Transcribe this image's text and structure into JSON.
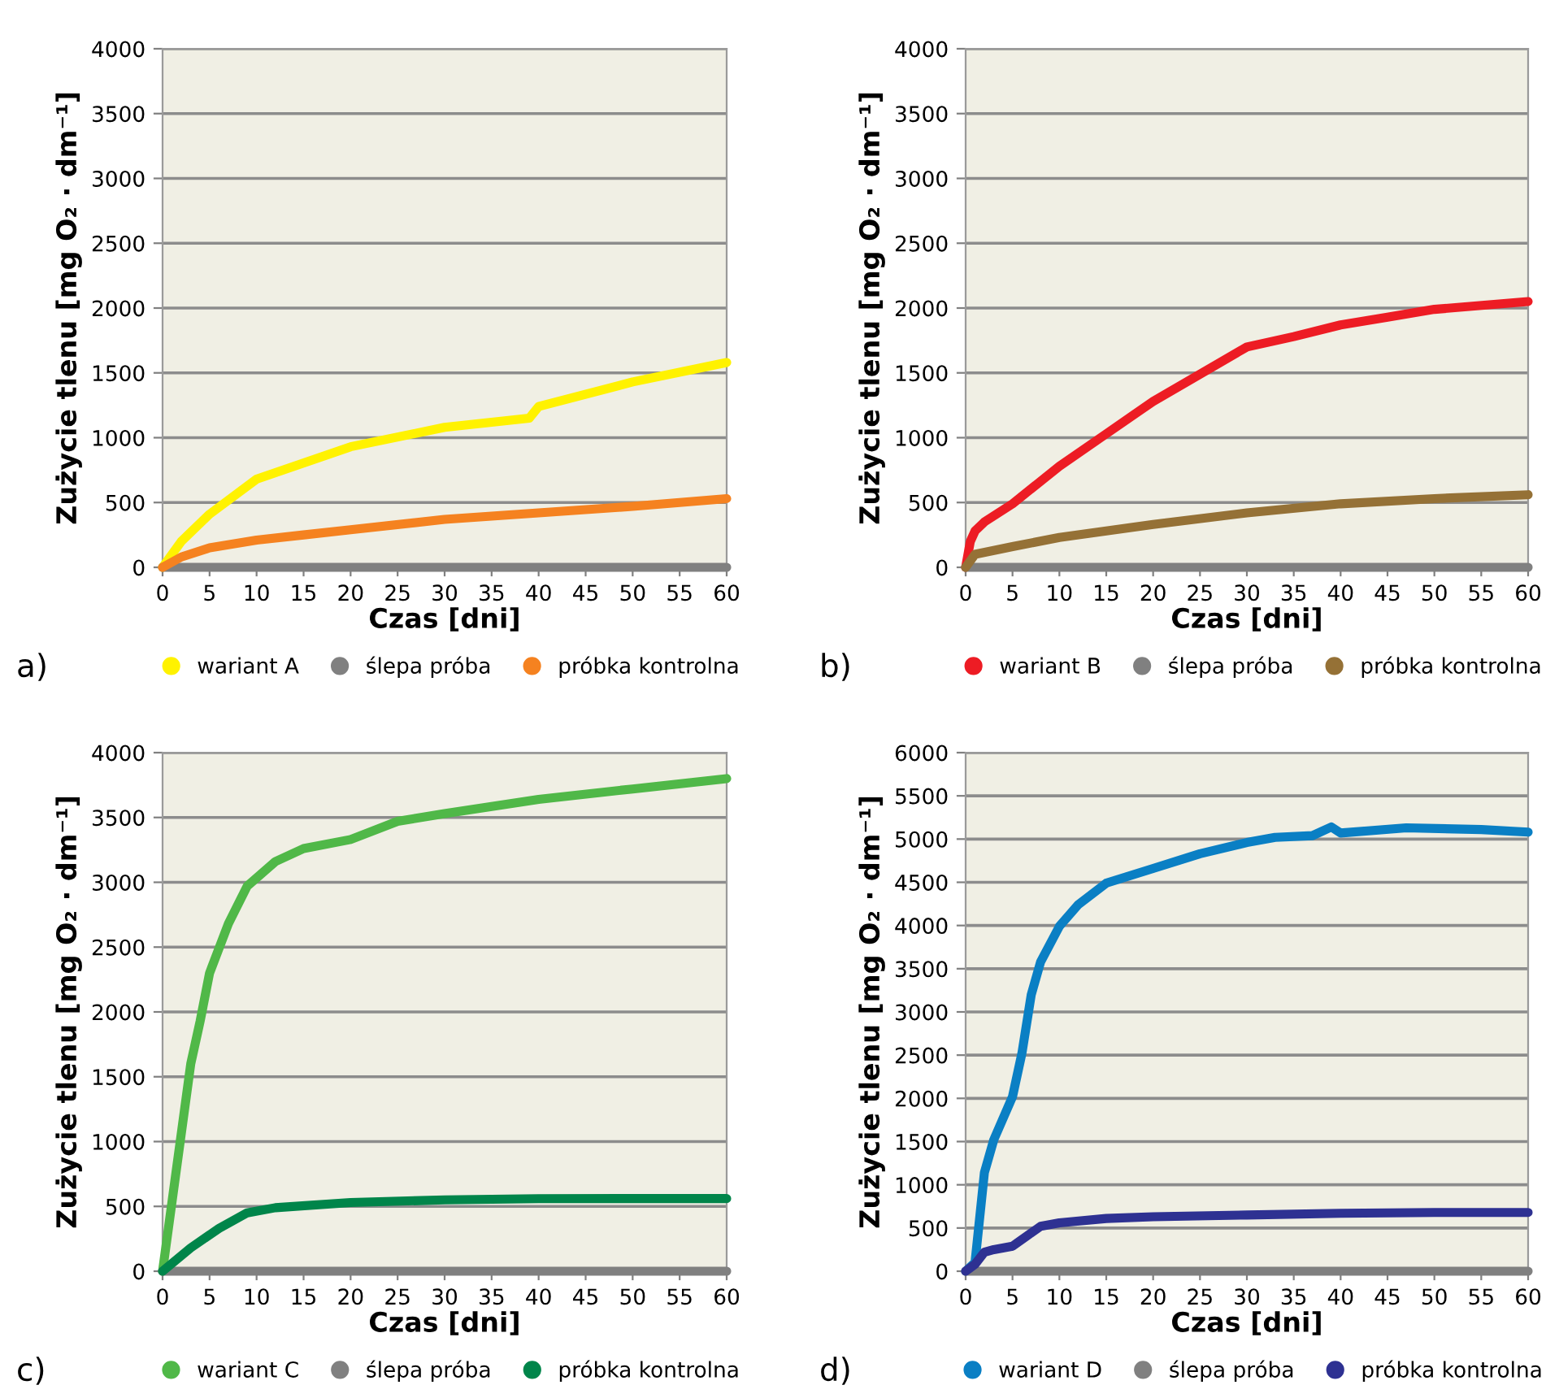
{
  "chart_data": [
    {
      "type": "line",
      "xlabel": "Czas [dni]",
      "ylabel": "Zużycie tlenu [mg O₂ · dm⁻¹]",
      "annotations": [
        "a)"
      ],
      "xlim": [
        0,
        60
      ],
      "xticks": [
        0,
        5,
        10,
        15,
        20,
        25,
        30,
        35,
        40,
        45,
        50,
        55,
        60
      ],
      "ylim": [
        0,
        4000
      ],
      "yticks": [
        0,
        500,
        1000,
        1500,
        2000,
        2500,
        3000,
        3500,
        4000
      ],
      "grid": "y",
      "legend": "bottom",
      "marker": "none",
      "line_style": "solid",
      "series": [
        {
          "name": "wariant A",
          "color": "#fff200",
          "x": [
            0,
            2,
            5,
            10,
            20,
            30,
            39,
            40,
            50,
            60
          ],
          "values": [
            0,
            200,
            410,
            680,
            930,
            1080,
            1150,
            1240,
            1430,
            1580
          ]
        },
        {
          "name": "ślepa próba",
          "color": "#808080",
          "x": [
            0,
            60
          ],
          "values": [
            0,
            0
          ]
        },
        {
          "name": "próbka kontrolna",
          "color": "#f58220",
          "x": [
            0,
            2,
            5,
            10,
            15,
            20,
            30,
            40,
            50,
            60
          ],
          "values": [
            0,
            80,
            150,
            210,
            250,
            290,
            370,
            420,
            470,
            530
          ]
        }
      ]
    },
    {
      "type": "line",
      "xlabel": "Czas [dni]",
      "ylabel": "Zużycie tlenu [mg O₂ · dm⁻¹]",
      "annotations": [
        "b)"
      ],
      "xlim": [
        0,
        60
      ],
      "xticks": [
        0,
        5,
        10,
        15,
        20,
        25,
        30,
        35,
        40,
        45,
        50,
        55,
        60
      ],
      "ylim": [
        0,
        4000
      ],
      "yticks": [
        0,
        500,
        1000,
        1500,
        2000,
        2500,
        3000,
        3500,
        4000
      ],
      "grid": "y",
      "legend": "bottom",
      "marker": "none",
      "line_style": "solid",
      "series": [
        {
          "name": "wariant B",
          "color": "#ed1c24",
          "x": [
            0,
            0.5,
            1,
            2,
            5,
            10,
            15,
            20,
            25,
            30,
            35,
            40,
            45,
            50,
            60
          ],
          "values": [
            0,
            200,
            280,
            350,
            490,
            780,
            1030,
            1280,
            1490,
            1700,
            1780,
            1870,
            1930,
            1990,
            2050
          ]
        },
        {
          "name": "ślepa próba",
          "color": "#808080",
          "x": [
            0,
            60
          ],
          "values": [
            0,
            0
          ]
        },
        {
          "name": "próbka kontrolna",
          "color": "#957136",
          "x": [
            0,
            1,
            5,
            10,
            20,
            30,
            40,
            50,
            60
          ],
          "values": [
            0,
            100,
            160,
            230,
            330,
            420,
            490,
            530,
            560
          ]
        }
      ]
    },
    {
      "type": "line",
      "xlabel": "Czas [dni]",
      "ylabel": "Zużycie tlenu [mg O₂ · dm⁻¹]",
      "annotations": [
        "c)"
      ],
      "xlim": [
        0,
        60
      ],
      "xticks": [
        0,
        5,
        10,
        15,
        20,
        25,
        30,
        35,
        40,
        45,
        50,
        55,
        60
      ],
      "ylim": [
        0,
        4000
      ],
      "yticks": [
        0,
        500,
        1000,
        1500,
        2000,
        2500,
        3000,
        3500,
        4000
      ],
      "grid": "y",
      "legend": "bottom",
      "marker": "none",
      "line_style": "solid",
      "series": [
        {
          "name": "wariant C",
          "color": "#50b848",
          "x": [
            0,
            3,
            4,
            5,
            7,
            9,
            12,
            15,
            20,
            25,
            30,
            40,
            50,
            60
          ],
          "values": [
            0,
            1600,
            1930,
            2300,
            2680,
            2970,
            3160,
            3260,
            3330,
            3470,
            3530,
            3640,
            3720,
            3800
          ]
        },
        {
          "name": "ślepa próba",
          "color": "#808080",
          "x": [
            0,
            60
          ],
          "values": [
            0,
            0
          ]
        },
        {
          "name": "próbka kontrolna",
          "color": "#00854a",
          "x": [
            0,
            3,
            6,
            9,
            12,
            20,
            30,
            40,
            50,
            60
          ],
          "values": [
            0,
            180,
            330,
            450,
            490,
            530,
            550,
            560,
            560,
            560
          ]
        }
      ]
    },
    {
      "type": "line",
      "xlabel": "Czas [dni]",
      "ylabel": "Zużycie tlenu [mg O₂ · dm⁻¹]",
      "annotations": [
        "d)"
      ],
      "xlim": [
        0,
        60
      ],
      "xticks": [
        0,
        5,
        10,
        15,
        20,
        25,
        30,
        35,
        40,
        45,
        50,
        55,
        60
      ],
      "ylim": [
        0,
        6000
      ],
      "yticks": [
        0,
        500,
        1000,
        1500,
        2000,
        2500,
        3000,
        3500,
        4000,
        4500,
        5000,
        5500,
        6000
      ],
      "grid": "y",
      "legend": "bottom",
      "marker": "none",
      "line_style": "solid",
      "series": [
        {
          "name": "wariant D",
          "color": "#0a7fc4",
          "x": [
            0,
            1,
            2,
            3,
            5,
            6,
            7,
            8,
            10,
            12,
            15,
            20,
            25,
            30,
            33,
            37,
            39,
            40,
            47,
            55,
            60
          ],
          "values": [
            0,
            100,
            1140,
            1520,
            2020,
            2520,
            3200,
            3580,
            3990,
            4240,
            4490,
            4660,
            4830,
            4960,
            5020,
            5040,
            5140,
            5070,
            5130,
            5110,
            5080
          ]
        },
        {
          "name": "ślepa próba",
          "color": "#808080",
          "x": [
            0,
            60
          ],
          "values": [
            0,
            0
          ]
        },
        {
          "name": "próbka kontrolna",
          "color": "#2e3192",
          "x": [
            0,
            1,
            2,
            3,
            5,
            8,
            10,
            15,
            20,
            30,
            40,
            50,
            60
          ],
          "values": [
            0,
            80,
            220,
            250,
            290,
            520,
            560,
            610,
            630,
            650,
            670,
            680,
            680
          ]
        }
      ]
    }
  ]
}
